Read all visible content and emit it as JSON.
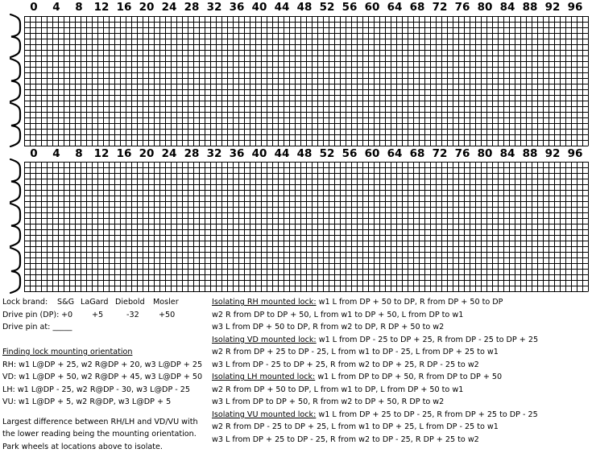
{
  "scale_labels": [
    "0",
    "4",
    "8",
    "12",
    "16",
    "20",
    "24",
    "28",
    "32",
    "36",
    "40",
    "44",
    "48",
    "52",
    "56",
    "60",
    "64",
    "68",
    "72",
    "76",
    "80",
    "84",
    "88",
    "92",
    "96"
  ],
  "notes_left": {
    "lock_brand_label": "Lock brand:",
    "brands": [
      "S&G",
      "LaGard",
      "Diebold",
      "Mosler"
    ],
    "drive_pin_label": "Drive pin (DP):",
    "drive_pin_values": [
      "+0",
      "+5",
      "-32",
      "+50"
    ],
    "drive_pin_at_label": "Drive pin at:",
    "drive_pin_at_blank": "_____",
    "finding_heading": "Finding lock mounting orientation",
    "finding_lines": [
      "RH: w1 L@DP + 25, w2 R@DP + 20, w3 L@DP + 25",
      "VD: w1 L@DP + 50, w2 R@DP + 45, w3 L@DP + 50",
      "LH: w1 L@DP - 25, w2 R@DP - 30, w3 L@DP - 25",
      "VU: w1 L@DP + 5, w2 R@DP, w3 L@DP + 5"
    ],
    "largest_lines": [
      "Largest difference between RH/LH and VD/VU with",
      "the lower reading being the mounting orientation.",
      "Park wheels at locations above to isolate."
    ]
  },
  "notes_right": [
    {
      "heading": "Isolating RH mounted lock:",
      "first": "w1 L from DP + 50 to DP, R from DP + 50 to DP",
      "rest": [
        "w2 R from DP to DP + 50, L from w1 to DP + 50, L from DP to w1",
        "w3 L from DP + 50 to DP, R from w2 to DP, R DP + 50 to w2"
      ]
    },
    {
      "heading": "Isolating VD mounted lock:",
      "first": "w1 L from DP - 25 to DP + 25, R from DP - 25 to DP + 25",
      "rest": [
        "w2 R from DP + 25 to DP - 25, L from w1 to DP - 25, L from DP + 25 to w1",
        "w3 L from DP - 25 to DP + 25, R from w2 to DP + 25, R DP - 25 to w2"
      ]
    },
    {
      "heading": "Isolating LH mounted lock:",
      "first": "w1 L from DP to DP + 50, R from DP to DP + 50",
      "rest": [
        "w2 R from DP + 50 to DP, L from w1 to DP, L from DP + 50 to w1",
        "w3 L from DP to DP + 50, R from w2 to DP + 50, R DP to w2"
      ]
    },
    {
      "heading": "Isolating VU mounted lock:",
      "first": "w1 L from DP + 25 to DP - 25, R from DP + 25 to DP - 25",
      "rest": [
        "w2 R from DP - 25 to DP + 25, L from w1 to DP + 25, L from DP - 25 to w1",
        "w3 L from DP + 25 to DP - 25, R from w2 to DP - 25, R DP + 25 to w2"
      ]
    }
  ]
}
